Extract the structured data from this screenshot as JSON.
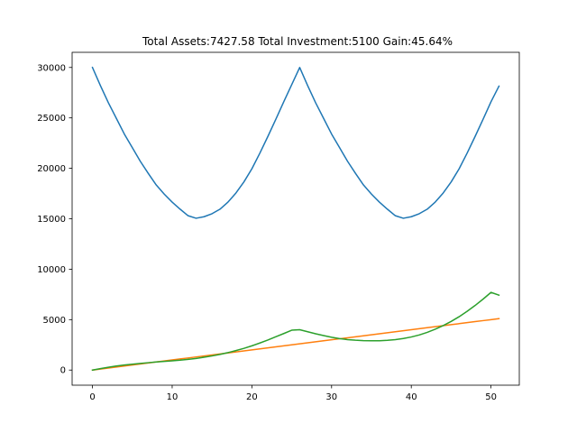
{
  "chart_data": {
    "type": "line",
    "title": "Total Assets:7427.58  Total Investment:5100  Gain:45.64%",
    "xlabel": "",
    "ylabel": "",
    "xlim": [
      -2.55,
      53.55
    ],
    "ylim": [
      -1500,
      31500
    ],
    "xticks": [
      0,
      10,
      20,
      30,
      40,
      50
    ],
    "yticks": [
      0,
      5000,
      10000,
      15000,
      20000,
      25000,
      30000
    ],
    "grid": false,
    "legend": false,
    "x": [
      0,
      1,
      2,
      3,
      4,
      5,
      6,
      7,
      8,
      9,
      10,
      11,
      12,
      13,
      14,
      15,
      16,
      17,
      18,
      19,
      20,
      21,
      22,
      23,
      24,
      25,
      26,
      27,
      28,
      29,
      30,
      31,
      32,
      33,
      34,
      35,
      36,
      37,
      38,
      39,
      40,
      41,
      42,
      43,
      44,
      45,
      46,
      47,
      48,
      49,
      50,
      51
    ],
    "series": [
      {
        "color": "#1f77b4",
        "values": [
          30000,
          28200,
          26500,
          24950,
          23400,
          22050,
          20700,
          19500,
          18350,
          17450,
          16650,
          15950,
          15300,
          15050,
          15200,
          15500,
          15950,
          16650,
          17550,
          18650,
          19950,
          21500,
          23150,
          24850,
          26600,
          28300,
          30000,
          28200,
          26500,
          24950,
          23400,
          22050,
          20700,
          19500,
          18350,
          17450,
          16650,
          15950,
          15300,
          15050,
          15200,
          15500,
          15950,
          16650,
          17550,
          18650,
          19950,
          21500,
          23150,
          24850,
          26600,
          28150
        ]
      },
      {
        "color": "#ff7f0e",
        "values": [
          0,
          100,
          200,
          300,
          400,
          500,
          600,
          700,
          800,
          900,
          1000,
          1100,
          1200,
          1300,
          1400,
          1500,
          1600,
          1700,
          1800,
          1900,
          2000,
          2100,
          2200,
          2300,
          2400,
          2500,
          2600,
          2700,
          2800,
          2900,
          3000,
          3100,
          3200,
          3300,
          3400,
          3500,
          3600,
          3700,
          3800,
          3900,
          4000,
          4100,
          4200,
          4300,
          4400,
          4500,
          4600,
          4700,
          4800,
          4900,
          5000,
          5100
        ]
      },
      {
        "color": "#2ca02c",
        "values": [
          0,
          140,
          280,
          400,
          500,
          580,
          660,
          730,
          800,
          860,
          920,
          980,
          1060,
          1150,
          1270,
          1400,
          1550,
          1730,
          1930,
          2150,
          2400,
          2680,
          2980,
          3300,
          3620,
          3950,
          4000,
          3800,
          3600,
          3420,
          3250,
          3120,
          3020,
          2960,
          2920,
          2900,
          2910,
          2950,
          3020,
          3130,
          3280,
          3480,
          3740,
          4050,
          4410,
          4820,
          5290,
          5820,
          6400,
          7030,
          7700,
          7427.58
        ]
      }
    ]
  }
}
